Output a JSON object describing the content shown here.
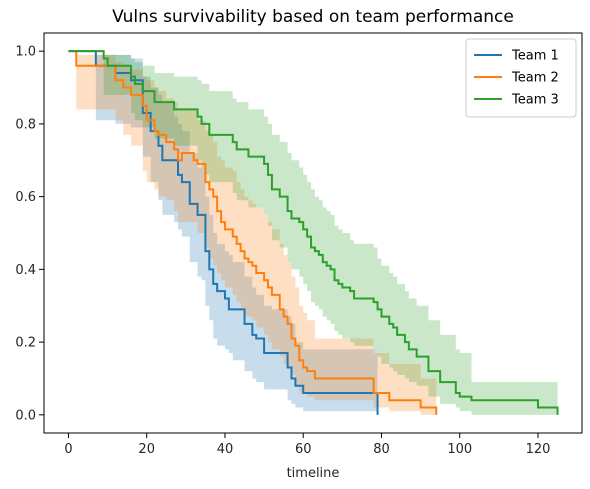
{
  "chart_data": {
    "type": "line",
    "step": true,
    "title": "Vulns survivability based on team performance",
    "xlabel": "timeline",
    "ylabel": "",
    "xlim": [
      -6.25,
      131.25
    ],
    "ylim": [
      -0.05,
      1.05
    ],
    "xticks": [
      0,
      20,
      40,
      60,
      80,
      100,
      120
    ],
    "yticks": [
      0.0,
      0.2,
      0.4,
      0.6,
      0.8,
      1.0
    ],
    "xtick_labels": [
      "0",
      "20",
      "40",
      "60",
      "80",
      "100",
      "120"
    ],
    "ytick_labels": [
      "0.0",
      "0.2",
      "0.4",
      "0.6",
      "0.8",
      "1.0"
    ],
    "grid": false,
    "legend_position": "top-right",
    "series": [
      {
        "name": "Team 1",
        "color": "#1f77b4",
        "x": [
          0,
          7,
          9,
          12,
          16,
          19,
          21,
          23,
          24,
          25,
          26,
          27,
          28,
          29,
          30,
          31,
          32,
          33,
          34,
          35,
          36,
          37,
          38,
          40,
          41,
          42,
          43,
          44,
          45,
          47,
          48,
          50,
          52,
          55,
          56,
          57,
          58,
          59,
          60,
          61,
          65,
          66,
          75,
          79
        ],
        "y": [
          1.0,
          0.96,
          0.96,
          0.94,
          0.92,
          0.83,
          0.78,
          0.74,
          0.7,
          0.7,
          0.7,
          0.7,
          0.66,
          0.64,
          0.64,
          0.58,
          0.58,
          0.55,
          0.55,
          0.45,
          0.4,
          0.36,
          0.34,
          0.32,
          0.29,
          0.29,
          0.29,
          0.29,
          0.25,
          0.22,
          0.21,
          0.17,
          0.17,
          0.17,
          0.13,
          0.1,
          0.08,
          0.08,
          0.06,
          0.06,
          0.06,
          0.06,
          0.06,
          0.0
        ],
        "ci_lower": [
          1.0,
          0.81,
          0.81,
          0.8,
          0.79,
          0.71,
          0.64,
          0.59,
          0.55,
          0.55,
          0.55,
          0.53,
          0.51,
          0.49,
          0.49,
          0.42,
          0.42,
          0.38,
          0.37,
          0.3,
          0.26,
          0.21,
          0.19,
          0.18,
          0.17,
          0.15,
          0.15,
          0.15,
          0.12,
          0.1,
          0.09,
          0.07,
          0.07,
          0.07,
          0.04,
          0.03,
          0.02,
          0.02,
          0.01,
          0.01,
          0.01,
          0.01,
          0.01,
          0.0
        ],
        "ci_upper": [
          1.0,
          0.99,
          0.99,
          0.99,
          0.98,
          0.93,
          0.9,
          0.88,
          0.86,
          0.86,
          0.86,
          0.82,
          0.8,
          0.78,
          0.78,
          0.72,
          0.72,
          0.68,
          0.68,
          0.6,
          0.55,
          0.5,
          0.47,
          0.45,
          0.44,
          0.42,
          0.42,
          0.42,
          0.38,
          0.35,
          0.33,
          0.3,
          0.29,
          0.29,
          0.27,
          0.25,
          0.2,
          0.2,
          0.18,
          0.18,
          0.18,
          0.18,
          0.18,
          0.18
        ]
      },
      {
        "name": "Team 2",
        "color": "#ff7f0e",
        "x": [
          0,
          2,
          8,
          12,
          14,
          16,
          19,
          20,
          22,
          23,
          24,
          25,
          26,
          27,
          28,
          29,
          32,
          33,
          35,
          36,
          37,
          38,
          39,
          40,
          42,
          43,
          44,
          45,
          46,
          47,
          48,
          50,
          51,
          52,
          54,
          55,
          56,
          57,
          58,
          59,
          60,
          61,
          63,
          66,
          72,
          75,
          78,
          80,
          81,
          82,
          90,
          94
        ],
        "y": [
          1.0,
          0.96,
          0.96,
          0.92,
          0.9,
          0.88,
          0.85,
          0.81,
          0.78,
          0.77,
          0.77,
          0.75,
          0.75,
          0.73,
          0.7,
          0.72,
          0.7,
          0.69,
          0.64,
          0.62,
          0.6,
          0.56,
          0.53,
          0.51,
          0.49,
          0.47,
          0.45,
          0.43,
          0.42,
          0.41,
          0.39,
          0.37,
          0.35,
          0.33,
          0.29,
          0.27,
          0.25,
          0.21,
          0.19,
          0.15,
          0.13,
          0.12,
          0.1,
          0.1,
          0.1,
          0.1,
          0.06,
          0.06,
          0.06,
          0.04,
          0.02,
          0.0
        ],
        "ci_lower": [
          1.0,
          0.84,
          0.84,
          0.81,
          0.77,
          0.74,
          0.67,
          0.64,
          0.62,
          0.6,
          0.6,
          0.59,
          0.59,
          0.56,
          0.53,
          0.53,
          0.53,
          0.5,
          0.46,
          0.43,
          0.41,
          0.39,
          0.37,
          0.35,
          0.33,
          0.31,
          0.29,
          0.27,
          0.27,
          0.26,
          0.24,
          0.22,
          0.2,
          0.18,
          0.16,
          0.14,
          0.13,
          0.11,
          0.08,
          0.06,
          0.06,
          0.05,
          0.04,
          0.04,
          0.04,
          0.04,
          0.02,
          0.02,
          0.02,
          0.01,
          0.0,
          0.0
        ],
        "ci_upper": [
          1.0,
          0.99,
          0.99,
          0.97,
          0.96,
          0.95,
          0.93,
          0.92,
          0.9,
          0.89,
          0.89,
          0.87,
          0.87,
          0.86,
          0.84,
          0.84,
          0.84,
          0.81,
          0.78,
          0.77,
          0.75,
          0.71,
          0.7,
          0.68,
          0.67,
          0.64,
          0.62,
          0.6,
          0.59,
          0.58,
          0.57,
          0.55,
          0.53,
          0.51,
          0.47,
          0.44,
          0.42,
          0.38,
          0.35,
          0.3,
          0.28,
          0.26,
          0.21,
          0.21,
          0.21,
          0.21,
          0.17,
          0.17,
          0.17,
          0.14,
          0.1,
          0.1
        ]
      },
      {
        "name": "Team 3",
        "color": "#2ca02c",
        "x": [
          0,
          9,
          10,
          11,
          16,
          17,
          19,
          21,
          22,
          23,
          27,
          28,
          33,
          34,
          35,
          36,
          38,
          39,
          42,
          43,
          44,
          46,
          47,
          48,
          49,
          50,
          51,
          52,
          53,
          54,
          55,
          56,
          57,
          58,
          59,
          60,
          61,
          62,
          63,
          64,
          65,
          66,
          67,
          68,
          69,
          70,
          71,
          72,
          73,
          76,
          78,
          79,
          80,
          81,
          82,
          83,
          84,
          86,
          87,
          88,
          89,
          90,
          92,
          95,
          99,
          100,
          103,
          113,
          120,
          125
        ],
        "y": [
          1.0,
          0.98,
          0.96,
          0.96,
          0.93,
          0.91,
          0.89,
          0.89,
          0.86,
          0.86,
          0.84,
          0.84,
          0.82,
          0.8,
          0.8,
          0.77,
          0.77,
          0.77,
          0.75,
          0.73,
          0.73,
          0.71,
          0.71,
          0.71,
          0.71,
          0.69,
          0.66,
          0.62,
          0.62,
          0.6,
          0.6,
          0.56,
          0.54,
          0.54,
          0.53,
          0.51,
          0.49,
          0.46,
          0.45,
          0.44,
          0.42,
          0.41,
          0.4,
          0.37,
          0.36,
          0.35,
          0.35,
          0.34,
          0.32,
          0.32,
          0.31,
          0.29,
          0.27,
          0.27,
          0.25,
          0.24,
          0.22,
          0.2,
          0.18,
          0.18,
          0.16,
          0.16,
          0.12,
          0.09,
          0.06,
          0.05,
          0.04,
          0.04,
          0.02,
          0.0
        ],
        "ci_lower": [
          1.0,
          0.88,
          0.88,
          0.88,
          0.83,
          0.81,
          0.79,
          0.79,
          0.76,
          0.76,
          0.74,
          0.74,
          0.7,
          0.68,
          0.66,
          0.64,
          0.64,
          0.64,
          0.61,
          0.59,
          0.59,
          0.57,
          0.57,
          0.57,
          0.57,
          0.55,
          0.52,
          0.48,
          0.48,
          0.46,
          0.46,
          0.42,
          0.4,
          0.4,
          0.38,
          0.36,
          0.34,
          0.31,
          0.3,
          0.29,
          0.27,
          0.26,
          0.25,
          0.23,
          0.22,
          0.21,
          0.21,
          0.2,
          0.19,
          0.19,
          0.18,
          0.16,
          0.14,
          0.14,
          0.13,
          0.12,
          0.11,
          0.1,
          0.09,
          0.09,
          0.08,
          0.08,
          0.05,
          0.03,
          0.02,
          0.01,
          0.0,
          0.0,
          0.0,
          0.0
        ],
        "ci_upper": [
          1.0,
          0.99,
          0.99,
          0.99,
          0.98,
          0.97,
          0.96,
          0.96,
          0.94,
          0.94,
          0.93,
          0.93,
          0.92,
          0.91,
          0.91,
          0.89,
          0.89,
          0.89,
          0.87,
          0.86,
          0.86,
          0.84,
          0.84,
          0.84,
          0.84,
          0.82,
          0.8,
          0.77,
          0.77,
          0.75,
          0.75,
          0.72,
          0.7,
          0.7,
          0.68,
          0.66,
          0.64,
          0.62,
          0.6,
          0.59,
          0.57,
          0.56,
          0.55,
          0.52,
          0.51,
          0.5,
          0.5,
          0.48,
          0.47,
          0.47,
          0.46,
          0.43,
          0.41,
          0.41,
          0.39,
          0.38,
          0.36,
          0.34,
          0.32,
          0.32,
          0.3,
          0.3,
          0.26,
          0.22,
          0.18,
          0.17,
          0.09,
          0.09,
          0.09,
          0.09
        ]
      }
    ]
  }
}
